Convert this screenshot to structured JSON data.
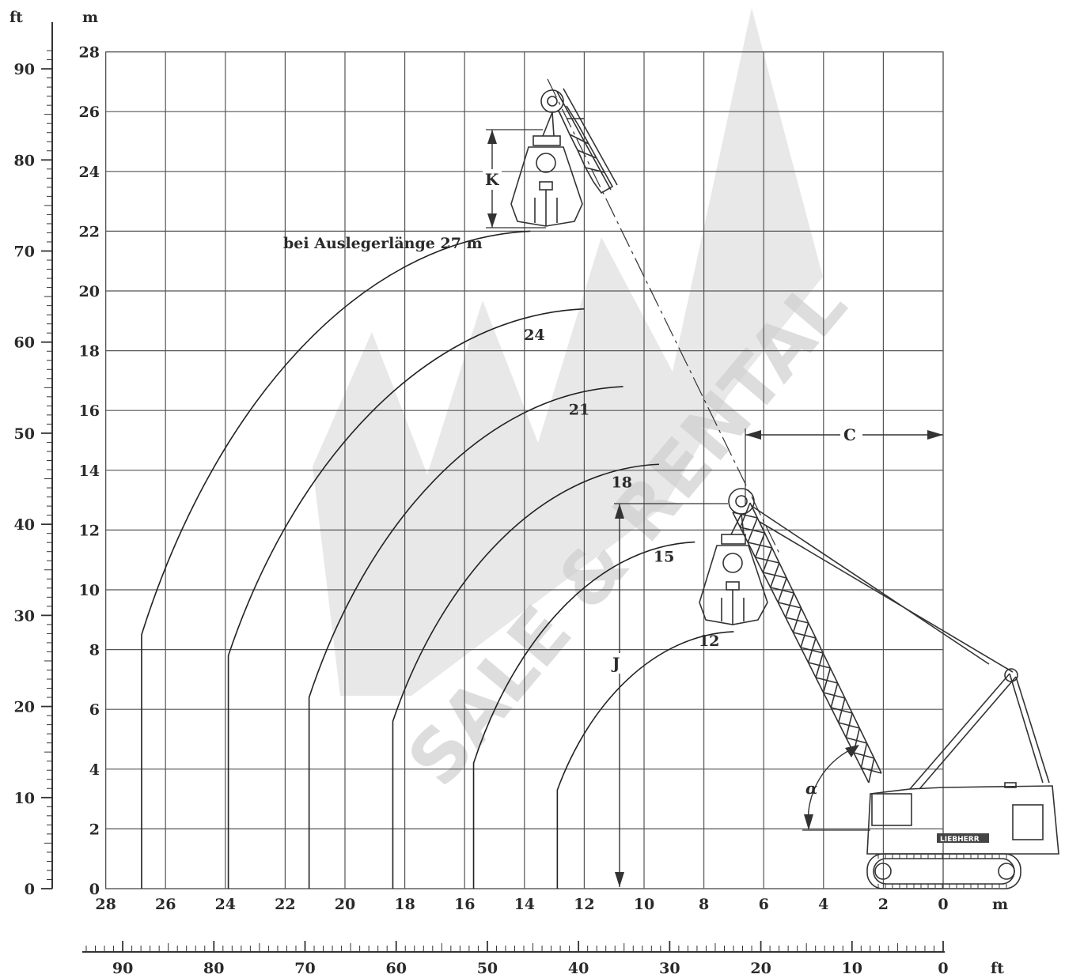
{
  "units": {
    "left_ft": "ft",
    "left_m": "m",
    "bottom_m": "m",
    "bottom_ft": "ft"
  },
  "y_axis_m": [
    "0",
    "2",
    "4",
    "6",
    "8",
    "10",
    "12",
    "14",
    "16",
    "18",
    "20",
    "22",
    "24",
    "26",
    "28"
  ],
  "y_axis_ft": [
    "0",
    "10",
    "20",
    "30",
    "40",
    "50",
    "60",
    "70",
    "80",
    "90"
  ],
  "x_axis_m": [
    "28",
    "26",
    "24",
    "22",
    "20",
    "18",
    "16",
    "14",
    "12",
    "10",
    "8",
    "6",
    "4",
    "2",
    "0"
  ],
  "x_axis_ft": [
    "90",
    "80",
    "70",
    "60",
    "50",
    "40",
    "30",
    "20",
    "10",
    "0"
  ],
  "boom_label": "bei Auslegerlänge 27 m",
  "curves": [
    {
      "label": "",
      "boom": 27,
      "x_start": 26.8,
      "h_vert": 8.5,
      "x_end": 13.8,
      "y_end": 22.0
    },
    {
      "label": "24",
      "boom": 24,
      "x_start": 23.9,
      "h_vert": 7.8,
      "x_end": 12.0,
      "y_end": 19.4
    },
    {
      "label": "21",
      "boom": 21,
      "x_start": 21.2,
      "h_vert": 6.4,
      "x_end": 10.7,
      "y_end": 16.8
    },
    {
      "label": "18",
      "boom": 18,
      "x_start": 18.4,
      "h_vert": 5.6,
      "x_end": 9.5,
      "y_end": 14.2
    },
    {
      "label": "15",
      "boom": 15,
      "x_start": 15.7,
      "h_vert": 4.2,
      "x_end": 8.3,
      "y_end": 11.6
    },
    {
      "label": "12",
      "boom": 12,
      "x_start": 12.9,
      "h_vert": 3.3,
      "x_end": 7.0,
      "y_end": 8.6
    }
  ],
  "dimensions": {
    "K": "K",
    "J": "J",
    "C": "C",
    "alpha": "α"
  },
  "machine": {
    "brand_plate": "LIEBHERR"
  },
  "watermark": {
    "logo": "LMK",
    "text": "SALE & RENTAL"
  }
}
